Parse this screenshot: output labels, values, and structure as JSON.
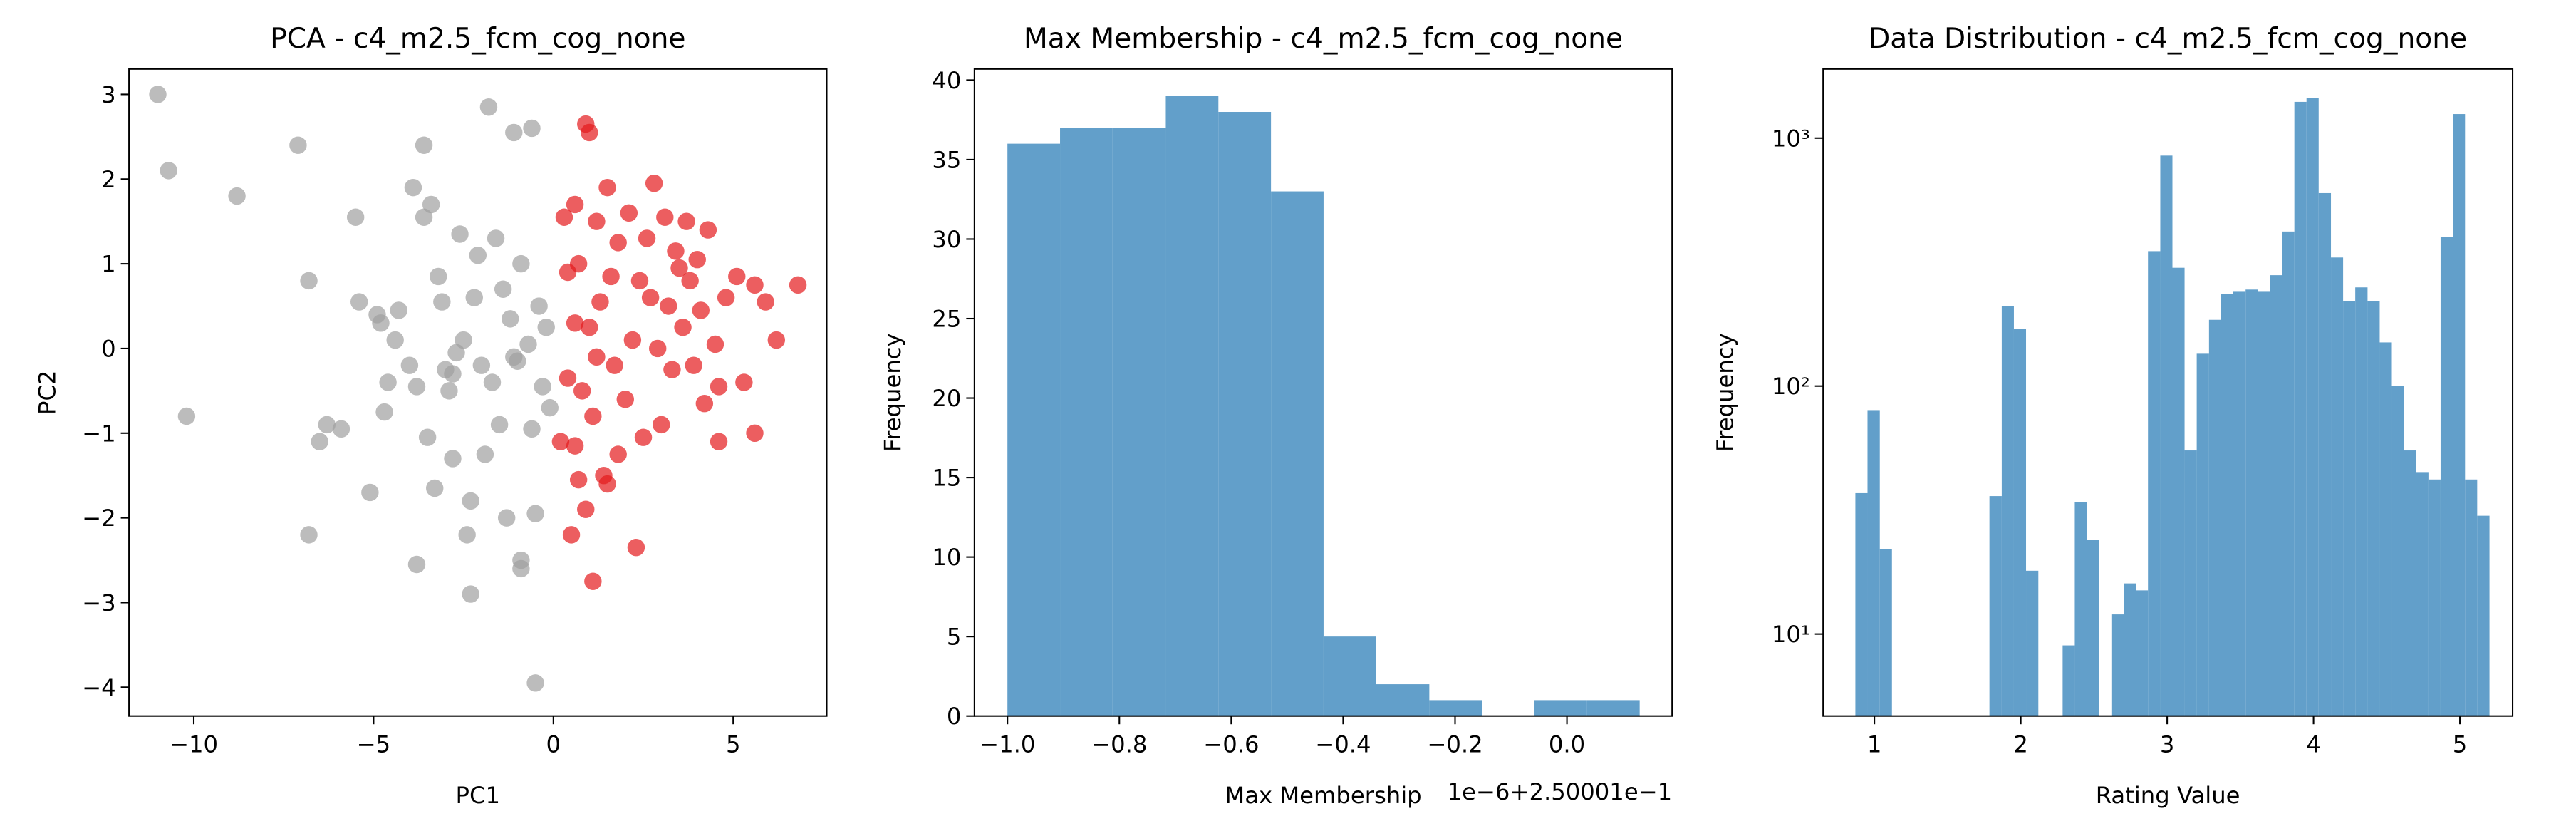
{
  "chart_data": [
    {
      "type": "scatter",
      "title": "PCA - c4_m2.5_fcm_cog_none",
      "xlabel": "PC1",
      "ylabel": "PC2",
      "xlim": [
        -11.8,
        7.6
      ],
      "ylim": [
        -4.34,
        3.3
      ],
      "xticks": [
        {
          "value": -10,
          "label": "−10"
        },
        {
          "value": -5,
          "label": "−5"
        },
        0,
        5
      ],
      "yticks": [
        {
          "value": -4,
          "label": "−4"
        },
        {
          "value": -3,
          "label": "−3"
        },
        {
          "value": -2,
          "label": "−2"
        },
        {
          "value": -1,
          "label": "−1"
        },
        0,
        1,
        2,
        3
      ],
      "series": [
        {
          "color": "#a0a0a0",
          "x": [
            -11,
            -10.7,
            -8.8,
            -7.1,
            -6.8,
            -10.2,
            -6.8,
            -6.5,
            -6.3,
            -5.9,
            -5.5,
            -5.4,
            -5.1,
            -4.9,
            -4.8,
            -4.7,
            -4.6,
            -4.4,
            -4.3,
            -4.0,
            -3.9,
            -3.8,
            -3.8,
            -3.6,
            -3.6,
            -3.4,
            -3.5,
            -3.3,
            -3.2,
            -3.1,
            -3.0,
            -2.9,
            -2.8,
            -2.7,
            -2.6,
            -2.5,
            -2.4,
            -2.3,
            -2.3,
            -2.2,
            -2.1,
            -2.0,
            -1.9,
            -1.8,
            -1.7,
            -1.6,
            -1.5,
            -1.4,
            -1.3,
            -1.2,
            -1.1,
            -1.0,
            -0.9,
            -0.9,
            -0.7,
            -0.6,
            -0.6,
            -0.5,
            -0.5,
            -0.4,
            -0.3,
            -0.2,
            -0.1,
            -0.9,
            -1.1,
            -2.8
          ],
          "y": [
            3.0,
            2.1,
            1.8,
            2.4,
            0.8,
            -0.8,
            -2.2,
            -1.1,
            -0.9,
            -0.95,
            1.55,
            0.55,
            -1.7,
            0.4,
            0.3,
            -0.75,
            -0.4,
            0.1,
            0.45,
            -0.2,
            1.9,
            -0.45,
            -2.55,
            2.4,
            1.55,
            1.7,
            -1.05,
            -1.65,
            0.85,
            0.55,
            -0.25,
            -0.5,
            -1.3,
            -0.05,
            1.35,
            0.1,
            -2.2,
            -1.8,
            -2.9,
            0.6,
            1.1,
            -0.2,
            -1.25,
            2.85,
            -0.4,
            1.3,
            -0.9,
            0.7,
            -2.0,
            0.35,
            2.55,
            -0.15,
            -2.5,
            1.0,
            0.05,
            2.6,
            -0.95,
            -3.95,
            -1.95,
            0.5,
            -0.45,
            0.25,
            -0.7,
            -2.6,
            -0.1,
            -0.3
          ]
        },
        {
          "color": "#e41a1c",
          "x": [
            0.3,
            0.4,
            0.5,
            0.6,
            0.6,
            0.7,
            0.8,
            0.9,
            0.9,
            1.0,
            1.0,
            1.1,
            1.1,
            1.2,
            1.3,
            1.4,
            1.5,
            1.6,
            1.7,
            1.8,
            2.0,
            2.1,
            2.2,
            2.3,
            2.4,
            2.5,
            2.6,
            2.8,
            2.9,
            3.0,
            3.1,
            3.2,
            3.3,
            3.4,
            3.6,
            3.7,
            3.8,
            3.9,
            4.0,
            4.1,
            4.3,
            4.5,
            4.6,
            4.6,
            4.8,
            5.1,
            5.3,
            5.6,
            5.6,
            5.9,
            6.2,
            6.8,
            0.2,
            0.7,
            1.5,
            0.4,
            1.2,
            2.7,
            3.5,
            4.2,
            1.8,
            0.6
          ],
          "y": [
            1.55,
            -0.35,
            -2.2,
            0.3,
            -1.15,
            1.0,
            -0.5,
            2.65,
            -1.9,
            2.55,
            0.25,
            -2.75,
            -0.8,
            1.5,
            0.55,
            -1.5,
            1.9,
            0.85,
            -0.2,
            1.25,
            -0.6,
            1.6,
            0.1,
            -2.35,
            0.8,
            -1.05,
            1.3,
            1.95,
            0.0,
            -0.9,
            1.55,
            0.5,
            -0.25,
            1.15,
            0.25,
            1.5,
            0.8,
            -0.2,
            1.05,
            0.45,
            1.4,
            0.05,
            -0.45,
            -1.1,
            0.6,
            0.85,
            -0.4,
            0.75,
            -1.0,
            0.55,
            0.1,
            0.75,
            -1.1,
            -1.55,
            -1.6,
            0.9,
            -0.1,
            0.6,
            0.95,
            -0.65,
            -1.25,
            1.7
          ]
        }
      ]
    },
    {
      "type": "histogram",
      "title": "Max Membership - c4_m2.5_fcm_cog_none",
      "xlabel": "Max Membership",
      "ylabel": "Frequency",
      "offset_text": "1e−6+2.50001e−1",
      "color": "#629fca",
      "xlim": [
        -1.059,
        0.188
      ],
      "ylim": [
        0,
        40.7
      ],
      "xticks": [
        {
          "value": -1.0,
          "label": "−1.0"
        },
        {
          "value": -0.8,
          "label": "−0.8"
        },
        {
          "value": -0.6,
          "label": "−0.6"
        },
        {
          "value": -0.4,
          "label": "−0.4"
        },
        {
          "value": -0.2,
          "label": "−0.2"
        },
        {
          "value": 0,
          "label": "0.0"
        }
      ],
      "yticks": [
        0,
        5,
        10,
        15,
        20,
        25,
        30,
        35,
        40
      ],
      "bins": [
        -1.0,
        -0.906,
        -0.812,
        -0.717,
        -0.623,
        -0.529,
        -0.435,
        -0.341,
        -0.246,
        -0.152,
        -0.058,
        0.036,
        0.13
      ],
      "values": [
        36,
        37,
        37,
        39,
        38,
        33,
        5,
        2,
        1,
        0,
        1,
        1
      ]
    },
    {
      "type": "histogram",
      "title": "Data Distribution - c4_m2.5_fcm_cog_none",
      "xlabel": "Rating Value",
      "ylabel": "Frequency",
      "yscale": "log",
      "color": "#629fca",
      "xlim": [
        0.65,
        5.36
      ],
      "ylim": [
        4.67,
        1900
      ],
      "xticks": [
        1,
        2,
        3,
        4,
        5
      ],
      "yticks": [
        {
          "value": 10,
          "label": "10¹"
        },
        {
          "value": 100,
          "label": "10²"
        },
        {
          "value": 1000,
          "label": "10³"
        }
      ],
      "bins": [
        0.87,
        0.953,
        1.037,
        1.12,
        1.203,
        1.287,
        1.37,
        1.453,
        1.536,
        1.62,
        1.703,
        1.786,
        1.87,
        1.953,
        2.036,
        2.12,
        2.203,
        2.286,
        2.369,
        2.453,
        2.536,
        2.619,
        2.703,
        2.786,
        2.869,
        2.953,
        3.036,
        3.119,
        3.202,
        3.286,
        3.369,
        3.452,
        3.536,
        3.619,
        3.702,
        3.786,
        3.869,
        3.952,
        4.035,
        4.119,
        4.202,
        4.285,
        4.369,
        4.452,
        4.535,
        4.619,
        4.702,
        4.785,
        4.868,
        4.952,
        5.035,
        5.118,
        5.202
      ],
      "values": [
        37,
        80,
        22,
        0,
        0,
        0,
        0,
        0,
        0,
        0,
        0,
        36,
        210,
        170,
        18,
        0,
        0,
        9,
        34,
        24,
        0,
        12,
        16,
        15,
        350,
        850,
        300,
        55,
        135,
        185,
        235,
        240,
        245,
        240,
        280,
        420,
        1400,
        1450,
        600,
        330,
        220,
        250,
        220,
        150,
        100,
        55,
        45,
        42,
        400,
        1250,
        42,
        30
      ]
    }
  ]
}
